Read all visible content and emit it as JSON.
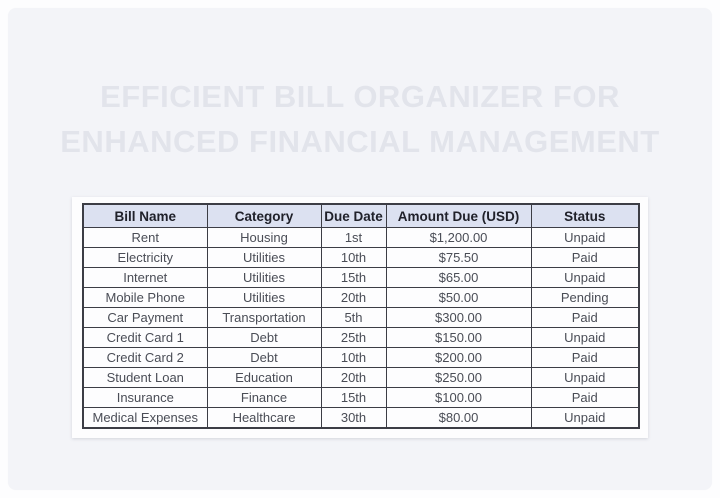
{
  "title": {
    "line1": "EFFICIENT BILL ORGANIZER FOR",
    "line2": "ENHANCED FINANCIAL MANAGEMENT"
  },
  "table": {
    "headers": [
      "Bill Name",
      "Category",
      "Due Date",
      "Amount Due (USD)",
      "Status"
    ],
    "rows": [
      [
        "Rent",
        "Housing",
        "1st",
        "$1,200.00",
        "Unpaid"
      ],
      [
        "Electricity",
        "Utilities",
        "10th",
        "$75.50",
        "Paid"
      ],
      [
        "Internet",
        "Utilities",
        "15th",
        "$65.00",
        "Unpaid"
      ],
      [
        "Mobile Phone",
        "Utilities",
        "20th",
        "$50.00",
        "Pending"
      ],
      [
        "Car Payment",
        "Transportation",
        "5th",
        "$300.00",
        "Paid"
      ],
      [
        "Credit Card 1",
        "Debt",
        "25th",
        "$150.00",
        "Unpaid"
      ],
      [
        "Credit Card 2",
        "Debt",
        "10th",
        "$200.00",
        "Paid"
      ],
      [
        "Student Loan",
        "Education",
        "20th",
        "$250.00",
        "Unpaid"
      ],
      [
        "Insurance",
        "Finance",
        "15th",
        "$100.00",
        "Paid"
      ],
      [
        "Medical Expenses",
        "Healthcare",
        "30th",
        "$80.00",
        "Unpaid"
      ]
    ]
  },
  "colors": {
    "card_background": "#f3f4f8",
    "title_text": "#e2e4eb",
    "sheet_background": "#fdfdfe",
    "header_background": "#dce1f1",
    "header_text": "#20212a",
    "body_text": "#4a4d56",
    "table_border": "#3c3d45"
  }
}
